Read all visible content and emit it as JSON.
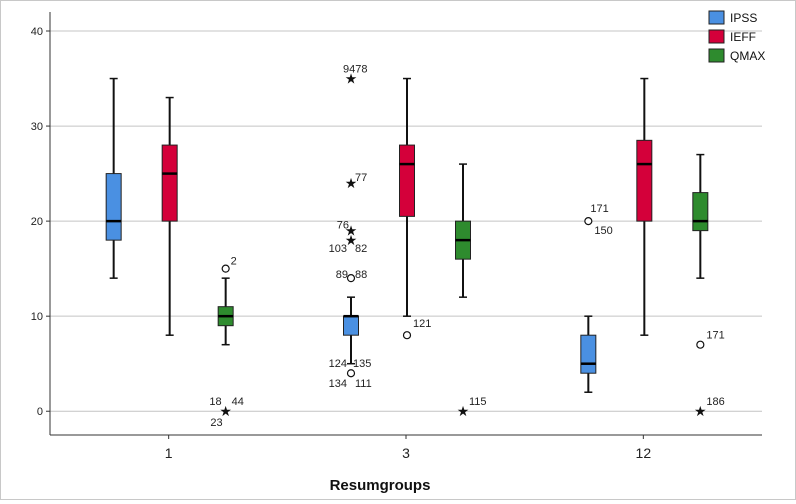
{
  "chart_data": {
    "type": "boxplot",
    "xlabel": "Resumgroups",
    "ylabel": "",
    "ylim": [
      -2.5,
      42
    ],
    "yticks": [
      0,
      10,
      20,
      30,
      40
    ],
    "grid": "horizontal",
    "legend_position": "top-right",
    "categories": [
      "1",
      "3",
      "12"
    ],
    "series": [
      {
        "name": "IPSS",
        "color": "#4a90e2",
        "boxes": [
          {
            "category": "1",
            "min": 14,
            "q1": 18,
            "median": 20,
            "q3": 25,
            "max": 35,
            "outliers": []
          },
          {
            "category": "3",
            "min": 5,
            "q1": 8,
            "median": 10,
            "q3": 10,
            "max": 12,
            "outliers": [
              {
                "value": 35,
                "marker": "star",
                "label": "9478"
              },
              {
                "value": 24,
                "marker": "star",
                "label": "77"
              },
              {
                "value": 19,
                "marker": "star",
                "label": "76"
              },
              {
                "value": 18,
                "marker": "star",
                "label": "103"
              },
              {
                "value": 18,
                "marker": "star",
                "label": "82"
              },
              {
                "value": 14,
                "marker": "circle",
                "label": "89"
              },
              {
                "value": 14,
                "marker": "circle",
                "label": "88"
              },
              {
                "value": 4,
                "marker": "circle",
                "label": "124"
              },
              {
                "value": 4,
                "marker": "circle",
                "label": "135"
              },
              {
                "value": 4,
                "marker": "circle",
                "label": "134"
              },
              {
                "value": 4,
                "marker": "circle",
                "label": "111"
              }
            ]
          },
          {
            "category": "12",
            "min": 2,
            "q1": 4,
            "median": 5,
            "q3": 8,
            "max": 10,
            "outliers": [
              {
                "value": 20,
                "marker": "circle",
                "label": "171"
              },
              {
                "value": 20,
                "marker": "circle",
                "label": "150"
              }
            ]
          }
        ]
      },
      {
        "name": "IEFF",
        "color": "#d4003a",
        "boxes": [
          {
            "category": "1",
            "min": 8,
            "q1": 20,
            "median": 25,
            "q3": 28,
            "max": 33,
            "outliers": []
          },
          {
            "category": "3",
            "min": 10,
            "q1": 20.5,
            "median": 26,
            "q3": 28,
            "max": 35,
            "outliers": [
              {
                "value": 8,
                "marker": "circle",
                "label": "121"
              }
            ]
          },
          {
            "category": "12",
            "min": 8,
            "q1": 20,
            "median": 26,
            "q3": 28.5,
            "max": 35,
            "outliers": []
          }
        ]
      },
      {
        "name": "QMAX",
        "color": "#2e8b2e",
        "boxes": [
          {
            "category": "1",
            "min": 7,
            "q1": 9,
            "median": 10,
            "q3": 11,
            "max": 14,
            "outliers": [
              {
                "value": 15,
                "marker": "circle",
                "label": "2"
              },
              {
                "value": 0,
                "marker": "star",
                "label": "18"
              },
              {
                "value": 0,
                "marker": "star",
                "label": "44"
              },
              {
                "value": 0,
                "marker": "star",
                "label": "23"
              }
            ]
          },
          {
            "category": "3",
            "min": 12,
            "q1": 16,
            "median": 18,
            "q3": 20,
            "max": 26,
            "outliers": [
              {
                "value": 0,
                "marker": "star",
                "label": "115"
              }
            ]
          },
          {
            "category": "12",
            "min": 14,
            "q1": 19,
            "median": 20,
            "q3": 23,
            "max": 27,
            "outliers": [
              {
                "value": 7,
                "marker": "circle",
                "label": "171"
              },
              {
                "value": 0,
                "marker": "star",
                "label": "186"
              }
            ]
          }
        ]
      }
    ]
  }
}
